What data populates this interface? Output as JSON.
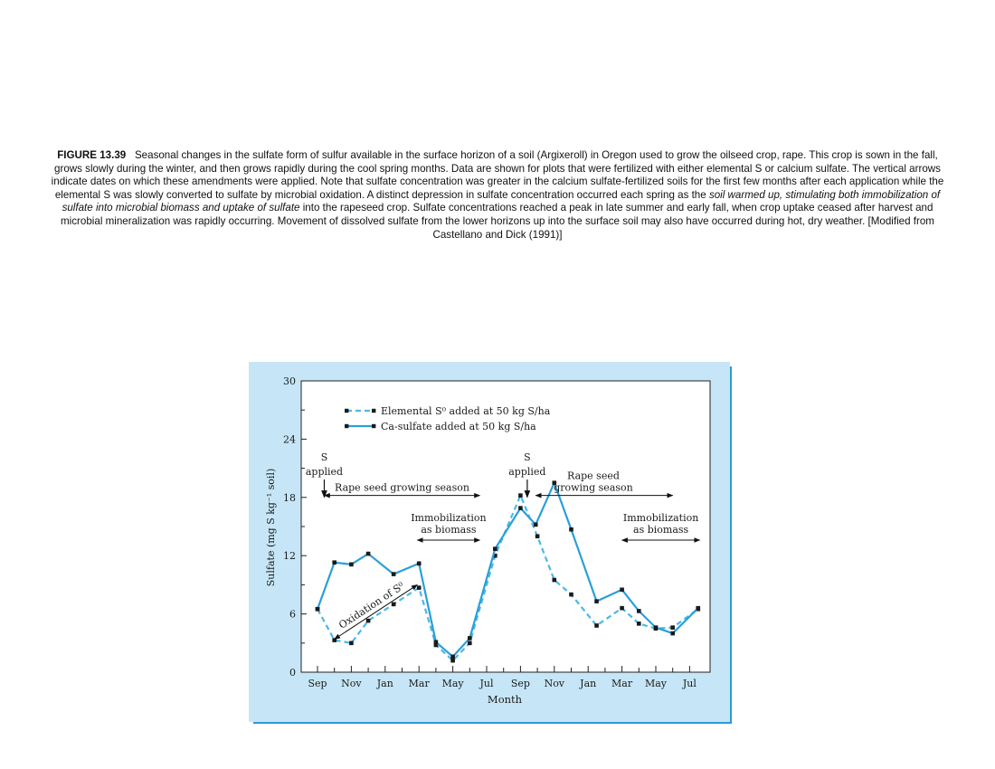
{
  "caption": {
    "label": "FIGURE 13.39",
    "part1": "Seasonal changes in the sulfate form of sulfur available in the surface horizon of a soil (Argixeroll) in Oregon used to grow the oilseed crop, rape. This crop is sown in the fall, grows slowly during the winter, and then grows rapidly during the cool spring months. Data are shown for plots that were fertilized with either elemental S or calcium sulfate. The vertical arrows indicate dates on which these amendments were applied. Note that sulfate concentration was greater in the calcium sulfate-fertilized soils for the first few months after each application while the elemental S was slowly converted to sulfate by microbial oxidation. A distinct depression in sulfate concentration occurred each spring as the",
    "italic": "soil warmed up, stimulating both immobilization of sulfate into microbial biomass and uptake of sulfate",
    "part2": "into the rapeseed crop. Sulfate concentrations reached a peak in late summer and early fall, when crop uptake ceased after harvest and microbial mineralization was rapidly occurring. Movement of dissolved sulfate from the lower horizons up into the surface soil may also have occurred during hot, dry weather. [Modified from Castellano and Dick (1991)]"
  },
  "chart_data": {
    "type": "line",
    "title": "",
    "xlabel": "Month",
    "ylabel": "Sulfate (mg S kg⁻¹ soil)",
    "ylim": [
      0,
      30
    ],
    "xlim": [
      -0.2,
      22.8
    ],
    "yticks": [
      0,
      6,
      12,
      18,
      24,
      30
    ],
    "xtick_labels": [
      "Sep",
      "Nov",
      "Jan",
      "Mar",
      "May",
      "Jul",
      "Sep",
      "Nov",
      "Jan",
      "Mar",
      "May",
      "Jul"
    ],
    "xtick_positions": [
      0,
      2,
      4,
      6,
      8,
      10,
      12,
      14,
      16,
      18,
      20,
      22
    ],
    "series": [
      {
        "name": "Elemental S⁰ added at 50 kg S/ha",
        "style": "dashed",
        "color": "#4ab9e6",
        "x": [
          0,
          1,
          2,
          3,
          4.5,
          6,
          7,
          8,
          9,
          10.5,
          12,
          13,
          14,
          15,
          16.5,
          18,
          19,
          20,
          21,
          22.5
        ],
        "y": [
          6.5,
          3.3,
          3.0,
          5.3,
          7.0,
          8.7,
          2.8,
          1.2,
          3.0,
          12.0,
          18.2,
          14.0,
          9.5,
          8.0,
          4.8,
          6.6,
          5.0,
          4.5,
          4.6,
          6.5
        ]
      },
      {
        "name": "Ca-sulfate added at 50 kg S/ha",
        "style": "solid",
        "color": "#2a9fd8",
        "x": [
          0,
          1,
          2,
          3,
          4.5,
          6,
          7,
          8,
          9,
          10.5,
          12,
          12.9,
          14,
          15,
          16.5,
          18,
          19,
          20,
          21,
          22.5
        ],
        "y": [
          6.5,
          11.3,
          11.1,
          12.2,
          10.1,
          11.2,
          3.1,
          1.6,
          3.5,
          12.7,
          16.9,
          15.2,
          19.5,
          14.7,
          7.3,
          8.5,
          6.3,
          4.6,
          4.0,
          6.6
        ]
      }
    ],
    "annotations": [
      {
        "text": "S",
        "line2": "applied",
        "x": 0.4,
        "y": 18.2
      },
      {
        "text": "S",
        "line2": "applied",
        "x": 12.4,
        "y": 18.2
      },
      {
        "text": "Rape seed growing season",
        "from": 0.4,
        "to": 9.6,
        "y": 18.2
      },
      {
        "text": "Rape seed",
        "line2": "growing season",
        "from": 12.9,
        "to": 21.0,
        "y": 18.2
      },
      {
        "text": "Immobilization",
        "line2": "as biomass",
        "from": 5.9,
        "to": 9.6,
        "y": 13.6
      },
      {
        "text": "Immobilization",
        "line2": "as biomass",
        "from": 18.0,
        "to": 22.6,
        "y": 13.6
      },
      {
        "text": "Oxidation of S⁰",
        "from_x": 1.0,
        "from_y": 3.4,
        "to_x": 5.9,
        "to_y": 9.0
      }
    ],
    "legend_position": "top-left"
  }
}
